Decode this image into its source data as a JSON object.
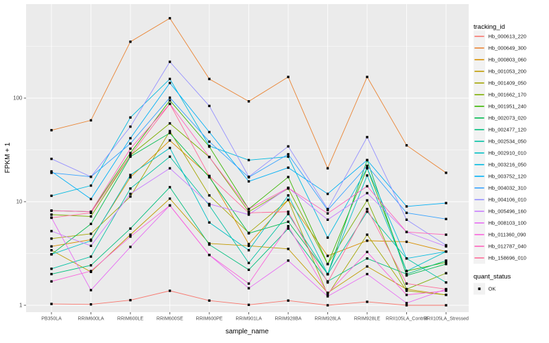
{
  "figure": {
    "background": "#FFFFFF",
    "panel_background": "#EBEBEB",
    "grid_color": "#FFFFFF",
    "tick_text_color": "#4D4D4D",
    "tick_mark_color": "#333333",
    "point_color": "#000000"
  },
  "chart_data": {
    "type": "line",
    "title": "",
    "xlabel": "sample_name",
    "ylabel": "FPKM + 1",
    "y_scale": "log10",
    "y_tick_labels": [
      "100",
      "10",
      "1"
    ],
    "y_tick_values": [
      100,
      10,
      1
    ],
    "y_minor_log_values": [
      0.5,
      1.5,
      2.5
    ],
    "ylim": [
      0.86,
      810
    ],
    "grid": "white major+minor on gray panel",
    "legend_position": "right",
    "point": {
      "shape": "filled-square",
      "color": "#000000",
      "legend_label": "OK"
    },
    "categories": [
      "PB350LA",
      "RRIM600LA",
      "RRIM600LE",
      "RRIM600SE",
      "RRIM600PE",
      "RRIM901LA",
      "RRIM928BA",
      "RRIM928LA",
      "RRIM928LE",
      "RRII105LA_Control",
      "RRII105LA_Stressed"
    ],
    "series": [
      {
        "name": "Hb_000613_220",
        "color": "#F8766D",
        "values": [
          1.03,
          1.02,
          1.12,
          1.38,
          1.11,
          1.01,
          1.11,
          1.0,
          1.08,
          1.0,
          1.0
        ]
      },
      {
        "name": "Hb_000649_300",
        "color": "#EA8331",
        "values": [
          49,
          61,
          350,
          590,
          153,
          93,
          160,
          21,
          160,
          35,
          19
        ]
      },
      {
        "name": "Hb_000803_060",
        "color": "#D89000",
        "values": [
          3.7,
          4.3,
          17.2,
          39,
          17.7,
          3.9,
          10.4,
          3.0,
          4.2,
          4.1,
          3.3
        ]
      },
      {
        "name": "Hb_001053_200",
        "color": "#C09B00",
        "values": [
          3.4,
          2.1,
          4.8,
          10.7,
          3.95,
          3.75,
          3.5,
          1.32,
          2.37,
          1.43,
          1.26
        ]
      },
      {
        "name": "Hb_001409_050",
        "color": "#A3A500",
        "values": [
          4.4,
          4.9,
          11.2,
          48,
          11.5,
          5.0,
          10.4,
          1.26,
          4.8,
          1.38,
          1.26
        ]
      },
      {
        "name": "Hb_001662_170",
        "color": "#7CAE00",
        "values": [
          7.5,
          7.2,
          28,
          57,
          27,
          8.0,
          13.4,
          2.5,
          10.3,
          1.43,
          2.04
        ]
      },
      {
        "name": "Hb_001951_240",
        "color": "#39B600",
        "values": [
          8.2,
          8.0,
          29.5,
          95,
          34,
          8.5,
          17.3,
          2.5,
          21,
          2.14,
          2.6
        ]
      },
      {
        "name": "Hb_002073_020",
        "color": "#00BB4E",
        "values": [
          3.1,
          6.1,
          27.2,
          46,
          17.2,
          4.95,
          6.4,
          2.0,
          25.2,
          1.94,
          2.5
        ]
      },
      {
        "name": "Hb_002477_120",
        "color": "#00BF7D",
        "values": [
          2.0,
          2.43,
          5.5,
          13.8,
          3.85,
          2.2,
          5.5,
          1.7,
          2.83,
          2.0,
          2.7
        ]
      },
      {
        "name": "Hb_002534_050",
        "color": "#00C1A3",
        "values": [
          2.25,
          2.95,
          13.4,
          27.2,
          9.2,
          2.56,
          7.6,
          1.99,
          8.0,
          2.83,
          1.66
        ]
      },
      {
        "name": "Hb_002910_010",
        "color": "#00BFC4",
        "values": [
          3.1,
          4.2,
          18.1,
          33,
          6.3,
          3.4,
          11.5,
          2.0,
          17.9,
          2.14,
          3.3
        ]
      },
      {
        "name": "Hb_003216_050",
        "color": "#00BAE0",
        "values": [
          11.4,
          14.3,
          65,
          153,
          34.5,
          25.2,
          27.2,
          4.5,
          21.1,
          2.83,
          3.3
        ]
      },
      {
        "name": "Hb_003752_120",
        "color": "#00B0F6",
        "values": [
          19.6,
          10.6,
          41,
          140,
          47,
          15.7,
          21.3,
          11.9,
          25.2,
          9.0,
          9.7
        ]
      },
      {
        "name": "Hb_004032_310",
        "color": "#35A2FF",
        "values": [
          19.0,
          17.4,
          36.4,
          101,
          38,
          17.2,
          28.7,
          8.3,
          22.2,
          7.8,
          6.8
        ]
      },
      {
        "name": "Hb_004106_010",
        "color": "#9590FF",
        "values": [
          25.9,
          17.4,
          53,
          224,
          84,
          17.4,
          34.2,
          8.5,
          42,
          6.7,
          3.8
        ]
      },
      {
        "name": "Hb_005496_160",
        "color": "#C77CFF",
        "values": [
          5.2,
          3.75,
          11.9,
          21,
          9.5,
          7.5,
          13.6,
          6.7,
          12.1,
          5.1,
          3.7
        ]
      },
      {
        "name": "Hb_008103_100",
        "color": "#E76BF3",
        "values": [
          7.0,
          1.4,
          3.66,
          9.2,
          3.06,
          1.46,
          2.7,
          1.22,
          2.0,
          1.05,
          1.43
        ]
      },
      {
        "name": "Hb_011360_090",
        "color": "#FA62DB",
        "values": [
          1.7,
          2.14,
          4.6,
          9.2,
          3.06,
          1.62,
          5.8,
          1.3,
          3.27,
          1.26,
          1.38
        ]
      },
      {
        "name": "Hb_012787_040",
        "color": "#FF62BC",
        "values": [
          8.2,
          8.0,
          32.5,
          88,
          27,
          8.5,
          13.6,
          7.7,
          14.1,
          5.1,
          4.8
        ]
      },
      {
        "name": "Hb_158696_010",
        "color": "#FF6A98",
        "values": [
          7.0,
          7.8,
          28,
          88,
          17.7,
          7.8,
          8.0,
          1.66,
          8.5,
          1.62,
          1.43
        ]
      }
    ]
  },
  "legend": {
    "tracking_title": "tracking_id",
    "quant_title": "quant_status",
    "quant_entries": [
      {
        "label": "OK"
      }
    ],
    "key_fill": "#F2F2F2"
  }
}
